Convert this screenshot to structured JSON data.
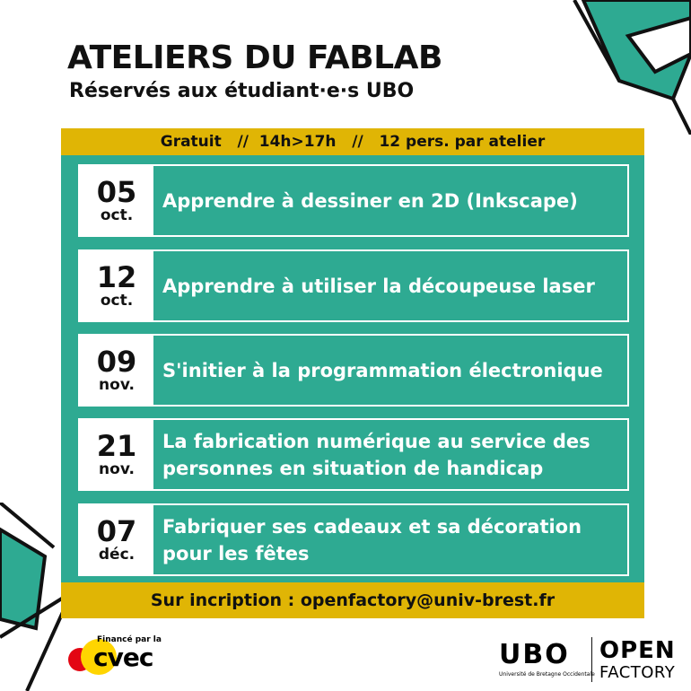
{
  "header": {
    "title": "ATELIERS DU FABLAB",
    "subtitle": "Réservés aux étudiant·e·s UBO"
  },
  "info_band": "Gratuit   //  14h>17h   //   12 pers. par atelier",
  "workshops": [
    {
      "day": "05",
      "month": "oct.",
      "title": "Apprendre à dessiner en 2D (Inkscape)"
    },
    {
      "day": "12",
      "month": "oct.",
      "title": "Apprendre à utiliser la découpeuse laser"
    },
    {
      "day": "09",
      "month": "nov.",
      "title": "S'initier à la programmation électronique"
    },
    {
      "day": "21",
      "month": "nov.",
      "title": "La fabrication numérique au service des personnes en situation de handicap"
    },
    {
      "day": "07",
      "month": "déc.",
      "title": "Fabriquer ses cadeaux et sa décoration pour les fêtes"
    }
  ],
  "registration": {
    "label": "Sur incription : ",
    "email": "openfactory@univ-brest.fr"
  },
  "logos": {
    "cvec_tag": "Financé par la",
    "cvec": "cvec",
    "ubo": "UBO",
    "ubo_sub": "Université de Bretagne Occidentale",
    "openfactory_1": "OPEN",
    "openfactory_2": "FACTORY"
  },
  "colors": {
    "teal": "#2eaa92",
    "gold": "#e0b505",
    "text": "#111111"
  }
}
